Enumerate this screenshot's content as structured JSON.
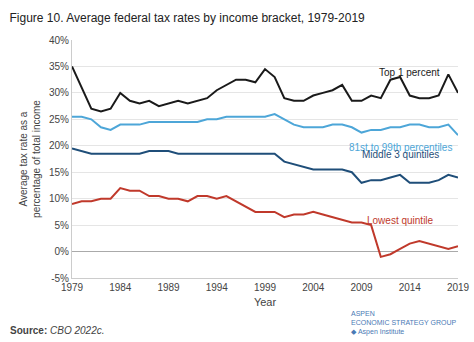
{
  "chart_data": {
    "type": "line",
    "title": "Figure 10. Average federal tax rates by income bracket, 1979-2019",
    "x_label": "Year",
    "y_label": "Average tax rate as a\npercentage of total income",
    "x": [
      1979,
      1980,
      1981,
      1982,
      1983,
      1984,
      1985,
      1986,
      1987,
      1988,
      1989,
      1990,
      1991,
      1992,
      1993,
      1994,
      1995,
      1996,
      1997,
      1998,
      1999,
      2000,
      2001,
      2002,
      2003,
      2004,
      2005,
      2006,
      2007,
      2008,
      2009,
      2010,
      2011,
      2012,
      2013,
      2014,
      2015,
      2016,
      2017,
      2018,
      2019
    ],
    "series": [
      {
        "name": "Top 1 percent",
        "color": "#1a1a1a",
        "values": [
          35.0,
          31.0,
          27.0,
          26.5,
          27.0,
          30.0,
          28.5,
          28.0,
          28.5,
          27.5,
          28.0,
          28.5,
          28.0,
          28.5,
          29.0,
          30.5,
          31.5,
          32.5,
          32.5,
          32.0,
          34.5,
          33.0,
          29.0,
          28.5,
          28.5,
          29.5,
          30.0,
          30.5,
          31.5,
          28.5,
          28.5,
          29.5,
          29.0,
          32.5,
          33.0,
          29.5,
          29.0,
          29.0,
          29.5,
          33.5,
          30.0
        ]
      },
      {
        "name": "81st to 99th percentiles",
        "color": "#4da6d8",
        "values": [
          25.5,
          25.5,
          25.0,
          23.5,
          23.0,
          24.0,
          24.0,
          24.0,
          24.5,
          24.5,
          24.5,
          24.5,
          24.5,
          24.5,
          25.0,
          25.0,
          25.5,
          25.5,
          25.5,
          25.5,
          25.5,
          26.0,
          25.0,
          24.0,
          23.5,
          23.5,
          23.5,
          24.0,
          24.0,
          23.5,
          22.5,
          23.0,
          23.0,
          23.5,
          23.5,
          24.0,
          24.0,
          23.5,
          23.5,
          24.0,
          22.0
        ]
      },
      {
        "name": "Middle 3 quintiles",
        "color": "#1f4e79",
        "values": [
          19.5,
          19.0,
          18.5,
          18.5,
          18.5,
          18.5,
          18.5,
          18.5,
          19.0,
          19.0,
          19.0,
          18.5,
          18.5,
          18.5,
          18.5,
          18.5,
          18.5,
          18.5,
          18.5,
          18.5,
          18.5,
          18.5,
          17.0,
          16.5,
          16.0,
          15.5,
          15.5,
          15.5,
          15.5,
          15.0,
          13.0,
          13.5,
          13.5,
          14.0,
          14.5,
          13.0,
          13.0,
          13.0,
          13.5,
          14.5,
          14.0
        ]
      },
      {
        "name": "Lowest quintile",
        "color": "#c0392b",
        "values": [
          9.0,
          9.5,
          9.5,
          10.0,
          10.0,
          12.0,
          11.5,
          11.5,
          10.5,
          10.5,
          10.0,
          10.0,
          9.5,
          10.5,
          10.5,
          10.0,
          10.5,
          9.5,
          8.5,
          7.5,
          7.5,
          7.5,
          6.5,
          7.0,
          7.0,
          7.5,
          7.0,
          6.5,
          6.0,
          5.5,
          5.5,
          5.0,
          -1.0,
          -0.5,
          0.5,
          1.5,
          2.0,
          1.5,
          1.0,
          0.5,
          1.0
        ]
      }
    ],
    "annotations": [
      {
        "text": "Top 1 percent",
        "x": 2014,
        "y": 32.5,
        "color": "#1a1a1a"
      },
      {
        "text": "81st to 99th percentiles",
        "x": 2013,
        "y": 21.0,
        "color": "#4da6d8"
      },
      {
        "text": "Middle 3 quintiles",
        "x": 2013,
        "y": 17.0,
        "color": "#1f4e79"
      },
      {
        "text": "Lowest quintile",
        "x": 2013,
        "y": 4.5,
        "color": "#c0392b"
      }
    ],
    "source_label": "Source:",
    "source": "CBO 2022c.",
    "logo": [
      "ASPEN",
      "ECONOMIC STRATEGY GROUP",
      "◆ Aspen Institute"
    ],
    "xlim": [
      1979,
      2019
    ],
    "xticks": [
      1979,
      1984,
      1989,
      1994,
      1999,
      2004,
      2009,
      2014,
      2019
    ],
    "ylim": [
      -5,
      40
    ],
    "yticks": [
      {
        "value": -5,
        "label": "-5%"
      },
      {
        "value": 0,
        "label": "0%"
      },
      {
        "value": 5,
        "label": "5%"
      },
      {
        "value": 10,
        "label": "10%"
      },
      {
        "value": 15,
        "label": "15%"
      },
      {
        "value": 20,
        "label": "20%"
      },
      {
        "value": 25,
        "label": "25%"
      },
      {
        "value": 30,
        "label": "30%"
      },
      {
        "value": 35,
        "label": "35%"
      },
      {
        "value": 40,
        "label": "40%"
      }
    ],
    "grid": true
  }
}
